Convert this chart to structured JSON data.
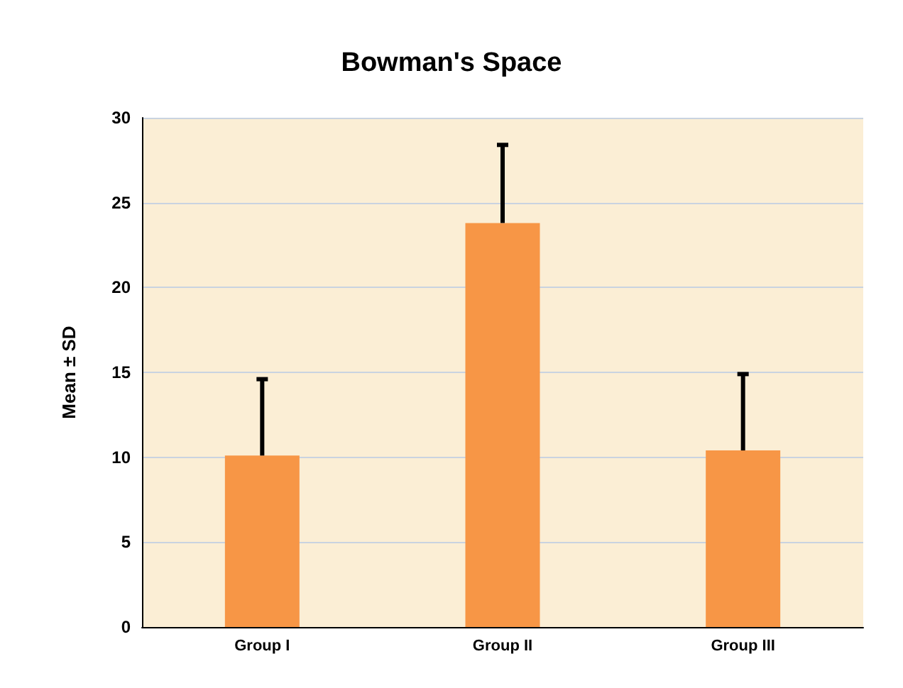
{
  "chart_data": {
    "type": "bar",
    "title": "Bowman's Space",
    "ylabel": "Mean ± SD",
    "categories": [
      "Group I",
      "Group II",
      "Group III"
    ],
    "values": [
      10.1,
      23.8,
      10.4
    ],
    "errors": [
      [
        10.1,
        14.6
      ],
      [
        23.8,
        28.4
      ],
      [
        10.4,
        14.9
      ]
    ],
    "color": "#f79646",
    "ylim": [
      0,
      30
    ],
    "yticks": [
      0,
      5,
      10,
      15,
      20,
      25,
      30
    ],
    "grid": "y"
  }
}
